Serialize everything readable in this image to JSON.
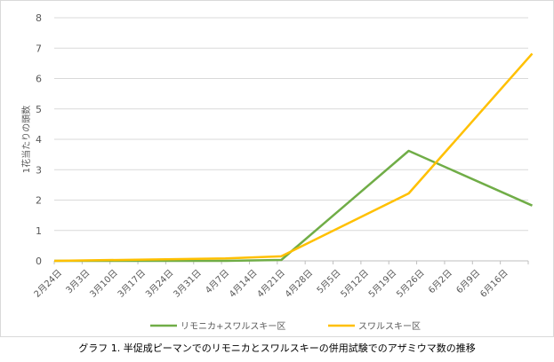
{
  "chart_data": {
    "type": "line",
    "ylabel": "1花当たりの頭数",
    "xlabel": "",
    "ylim": [
      0,
      8
    ],
    "yticks": [
      "0",
      "1",
      "2",
      "3",
      "4",
      "5",
      "6",
      "7",
      "8"
    ],
    "categories": [
      "2月24日",
      "3月3日",
      "3月10日",
      "3月17日",
      "3月24日",
      "3月31日",
      "4月7日",
      "4月14日",
      "4月21日",
      "4月28日",
      "5月5日",
      "5月12日",
      "5月19日",
      "5月26日",
      "6月2日",
      "6月9日",
      "6月16日"
    ],
    "grid": true,
    "legend_position": "bottom",
    "series": [
      {
        "name": "リモニカ+スワルスキー区",
        "color": "#70ad47",
        "points": [
          {
            "x": "2月24日",
            "y": 0
          },
          {
            "x": "4月7日",
            "y": 0
          },
          {
            "x": "4月21日",
            "y": 0.03
          },
          {
            "x": "5月23日",
            "y": 3.62
          },
          {
            "x": "6月23日",
            "y": 1.82
          }
        ]
      },
      {
        "name": "スワルスキー区",
        "color": "#ffc000",
        "points": [
          {
            "x": "2月24日",
            "y": 0
          },
          {
            "x": "4月7日",
            "y": 0.08
          },
          {
            "x": "4月21日",
            "y": 0.15
          },
          {
            "x": "5月23日",
            "y": 2.22
          },
          {
            "x": "6月23日",
            "y": 6.82
          }
        ]
      }
    ]
  },
  "caption": "グラフ 1. 半促成ピーマンでのリモニカとスワルスキーの併用試験でのアザミウマ数の推移"
}
